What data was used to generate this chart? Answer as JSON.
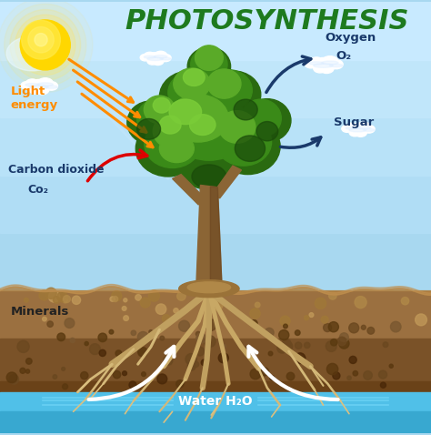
{
  "title": "PHOTOSYNTHESIS",
  "title_color": "#1e7a1e",
  "title_fontsize": 22,
  "labels": {
    "light_energy": "Light\nenergy",
    "light_energy_color": "#ff8c00",
    "oxygen": "Oxygen",
    "o2": "O₂",
    "oxygen_color": "#1a3a6b",
    "sugar": "Sugar",
    "sugar_color": "#1a3a6b",
    "carbon_dioxide": "Carbon dioxide",
    "co2": "Co₂",
    "co2_color": "#1a3a6b",
    "minerals": "Minerals",
    "minerals_color": "#222222",
    "water": "Water H₂O",
    "water_color": "#ffffff"
  },
  "sky_top": "#a8d8f0",
  "sky_bottom": "#c8eaff",
  "ground_top": "#8B6030",
  "ground_mid": "#7a5020",
  "ground_bot": "#6a4010",
  "water_top": "#70d0f0",
  "water_bot": "#40a8d0",
  "sun_col": "#FFD700",
  "cloud_col": "#ffffff",
  "trunk_col": "#8B6535",
  "trunk_dark": "#6a4520",
  "canopy_dark": "#2a6a10",
  "canopy_mid": "#3a8a18",
  "canopy_light": "#5aaa28",
  "canopy_bright": "#7acc38",
  "root_col": "#c8a865",
  "root_dark": "#a07840"
}
